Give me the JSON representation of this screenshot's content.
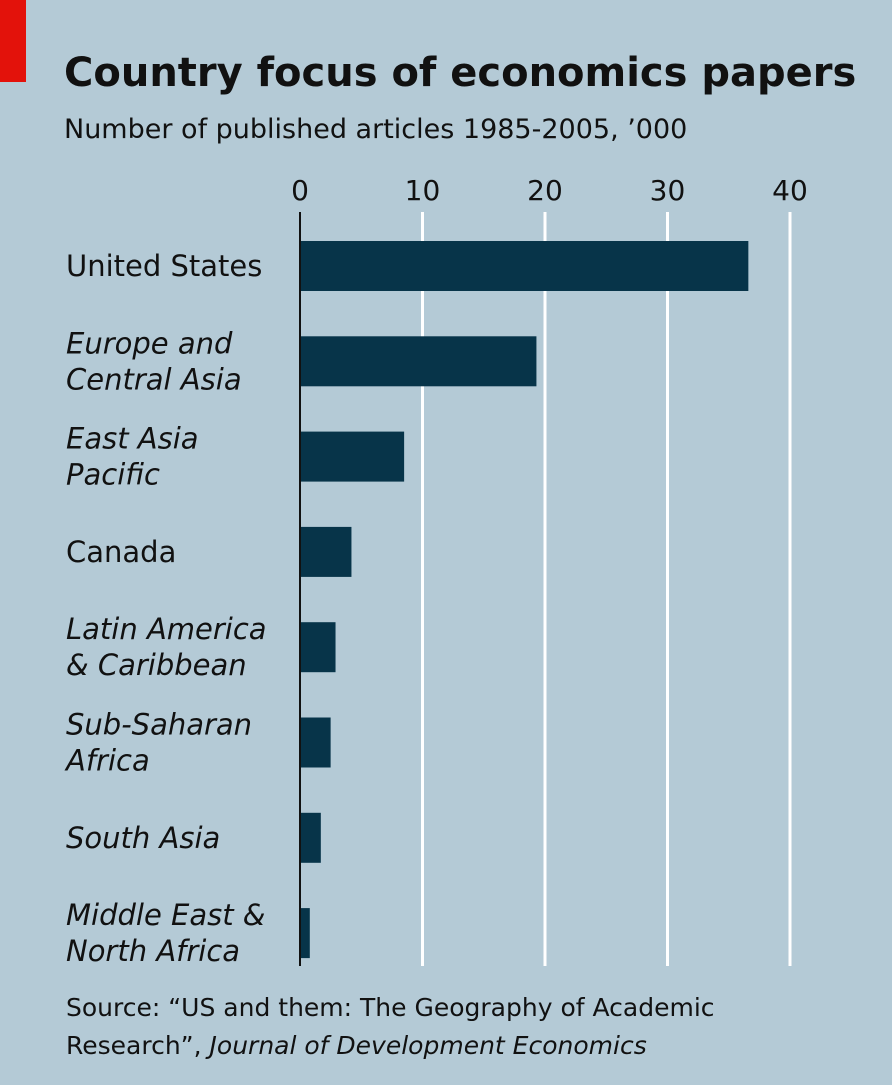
{
  "chart_data": {
    "type": "bar",
    "orientation": "horizontal",
    "title": "Country focus of economics papers",
    "subtitle": "Number of published articles 1985-2005, ’000",
    "categories": [
      "United States",
      "Europe and Central Asia",
      "East Asia Pacific",
      "Canada",
      "Latin America & Caribbean",
      "Sub-Saharan Africa",
      "South Asia",
      "Middle East & North Africa"
    ],
    "category_lines": [
      [
        "United States"
      ],
      [
        "Europe and",
        "Central Asia"
      ],
      [
        "East Asia",
        "Pacific"
      ],
      [
        "Canada"
      ],
      [
        "Latin America",
        "& Caribbean"
      ],
      [
        "Sub-Saharan",
        "Africa"
      ],
      [
        "South Asia"
      ],
      [
        "Middle East &",
        "North Africa"
      ]
    ],
    "category_italic": [
      false,
      true,
      true,
      false,
      true,
      true,
      true,
      true
    ],
    "values": [
      36.6,
      19.3,
      8.5,
      4.2,
      2.9,
      2.5,
      1.7,
      0.8
    ],
    "xlim": [
      0,
      40
    ],
    "xticks": [
      0,
      10,
      20,
      30,
      40
    ],
    "xtick_labels": [
      "0",
      "10",
      "20",
      "30",
      "40"
    ],
    "grid": true,
    "xlabel": "",
    "ylabel": "",
    "source_line1": "Source: “US and them: The Geography of Academic",
    "source_line2_plain": "Research”, ",
    "source_line2_italic": "Journal of Development Economics",
    "colors": {
      "background": "#b4cad6",
      "bar": "#073449",
      "grid": "#ffffff",
      "accent": "#e3120b"
    }
  }
}
